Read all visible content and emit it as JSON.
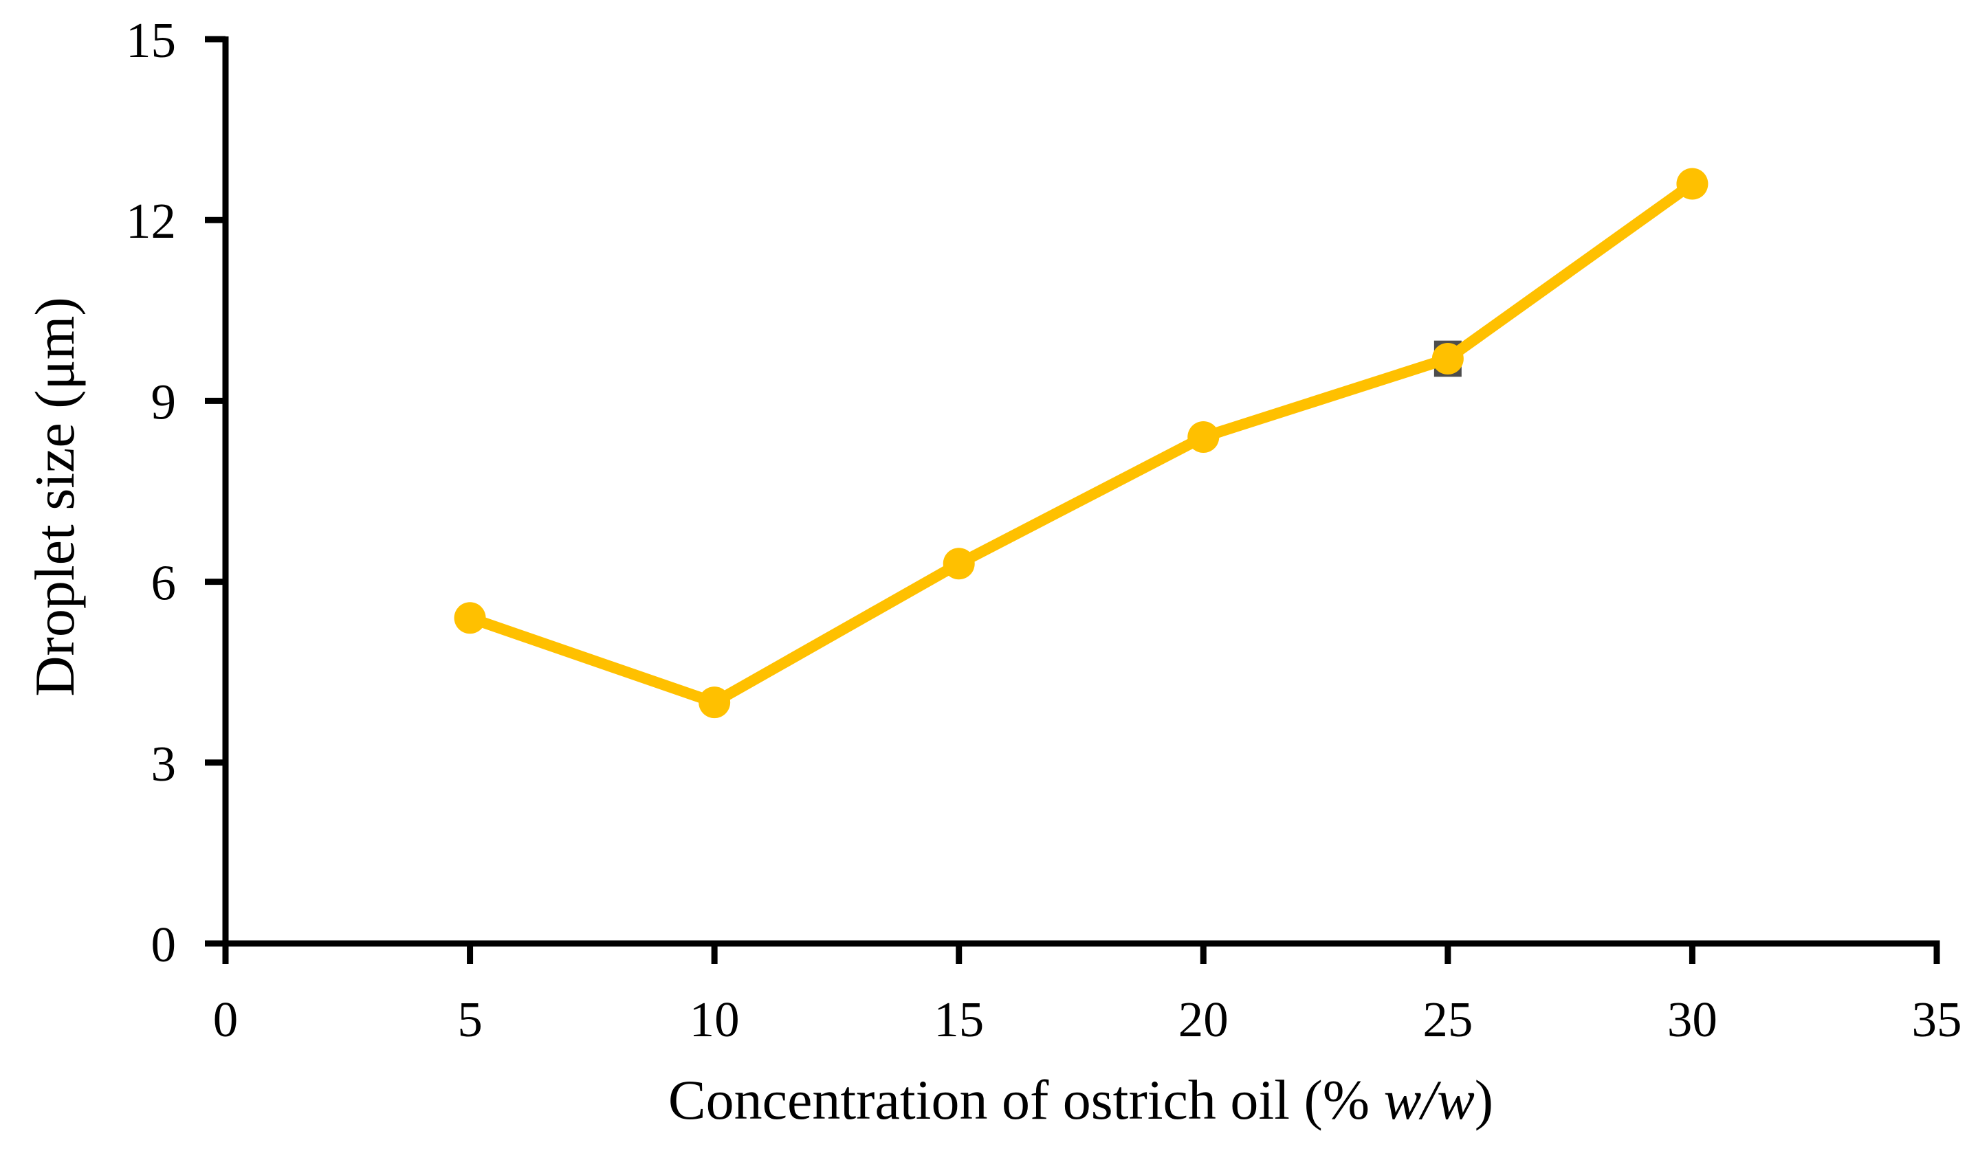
{
  "figure": {
    "background": "#ffffff",
    "axis_color": "#000000",
    "text_color": "#000000"
  },
  "chart_data": {
    "type": "line",
    "title": "",
    "xlabel": "Concentration of ostrich oil (% w/w)",
    "xlabel_parts": {
      "prefix": "Concentration of ostrich oil (% ",
      "italic": "w/w",
      "suffix": ")"
    },
    "ylabel": "Droplet size (μm)",
    "series": [
      {
        "name": "Droplet size",
        "x": [
          5,
          10,
          15,
          20,
          25,
          30
        ],
        "y": [
          5.4,
          4.0,
          6.3,
          8.4,
          9.7,
          12.6
        ],
        "line_color": "#FFC000",
        "marker": "circle"
      }
    ],
    "error_bar": {
      "x": 25,
      "y": 9.7,
      "plus": 0.3,
      "minus": 0.3,
      "color": "#4d4d4d"
    },
    "xlim": [
      0,
      35
    ],
    "ylim": [
      0,
      15
    ],
    "xticks": [
      0,
      5,
      10,
      15,
      20,
      25,
      30,
      35
    ],
    "yticks": [
      0,
      3,
      6,
      9,
      12,
      15
    ],
    "grid": false,
    "legend": "none"
  }
}
